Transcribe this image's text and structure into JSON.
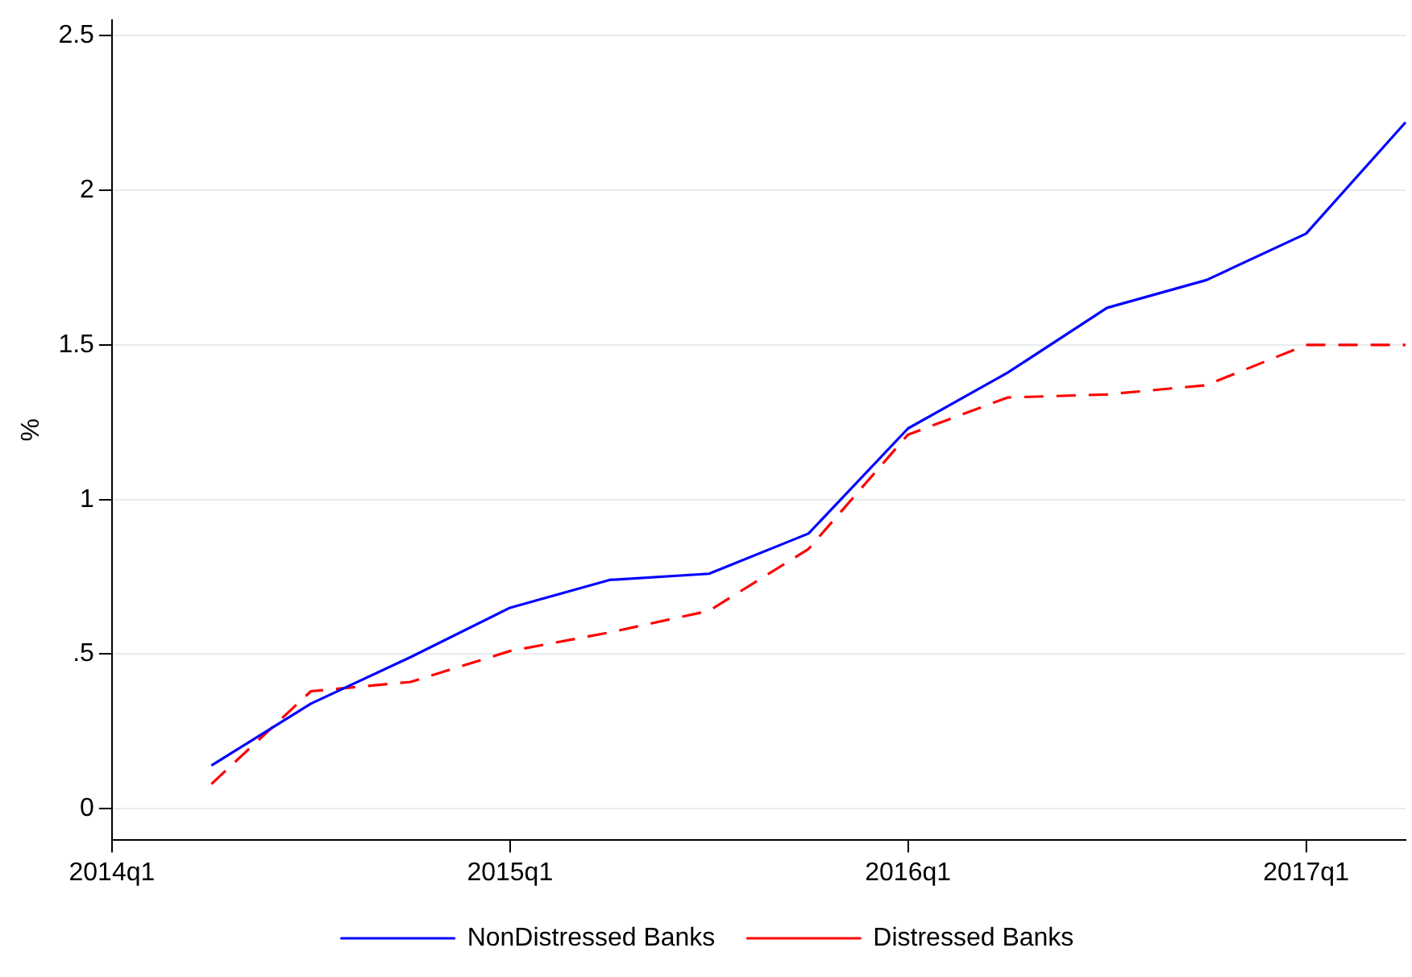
{
  "chart_data": {
    "type": "line",
    "ylabel": "%",
    "categories": [
      "2014q1",
      null,
      null,
      null,
      "2015q1",
      null,
      null,
      null,
      "2016q1",
      null,
      null,
      null,
      "2017q1",
      null
    ],
    "series": [
      {
        "name": "NonDistressed Banks",
        "color": "#0000ff",
        "line_style": "solid",
        "values": [
          null,
          0.14,
          0.34,
          0.49,
          0.65,
          0.74,
          0.76,
          0.89,
          1.23,
          1.41,
          1.62,
          1.71,
          1.86,
          2.22
        ]
      },
      {
        "name": "Distressed Banks",
        "color": "#ff0000",
        "line_style": "dashed",
        "values": [
          null,
          0.08,
          0.38,
          0.41,
          0.51,
          0.57,
          0.64,
          0.84,
          1.21,
          1.33,
          1.34,
          1.37,
          1.5,
          1.5
        ]
      }
    ],
    "ylim": [
      -0.1,
      2.55
    ],
    "yticks": [
      {
        "value": 0,
        "label": "0"
      },
      {
        "value": 0.5,
        "label": ".5"
      },
      {
        "value": 1,
        "label": "1"
      },
      {
        "value": 1.5,
        "label": "1.5"
      },
      {
        "value": 2,
        "label": "2"
      },
      {
        "value": 2.5,
        "label": "2.5"
      }
    ],
    "grid": "y",
    "legend": "bottom",
    "marker": "none"
  }
}
